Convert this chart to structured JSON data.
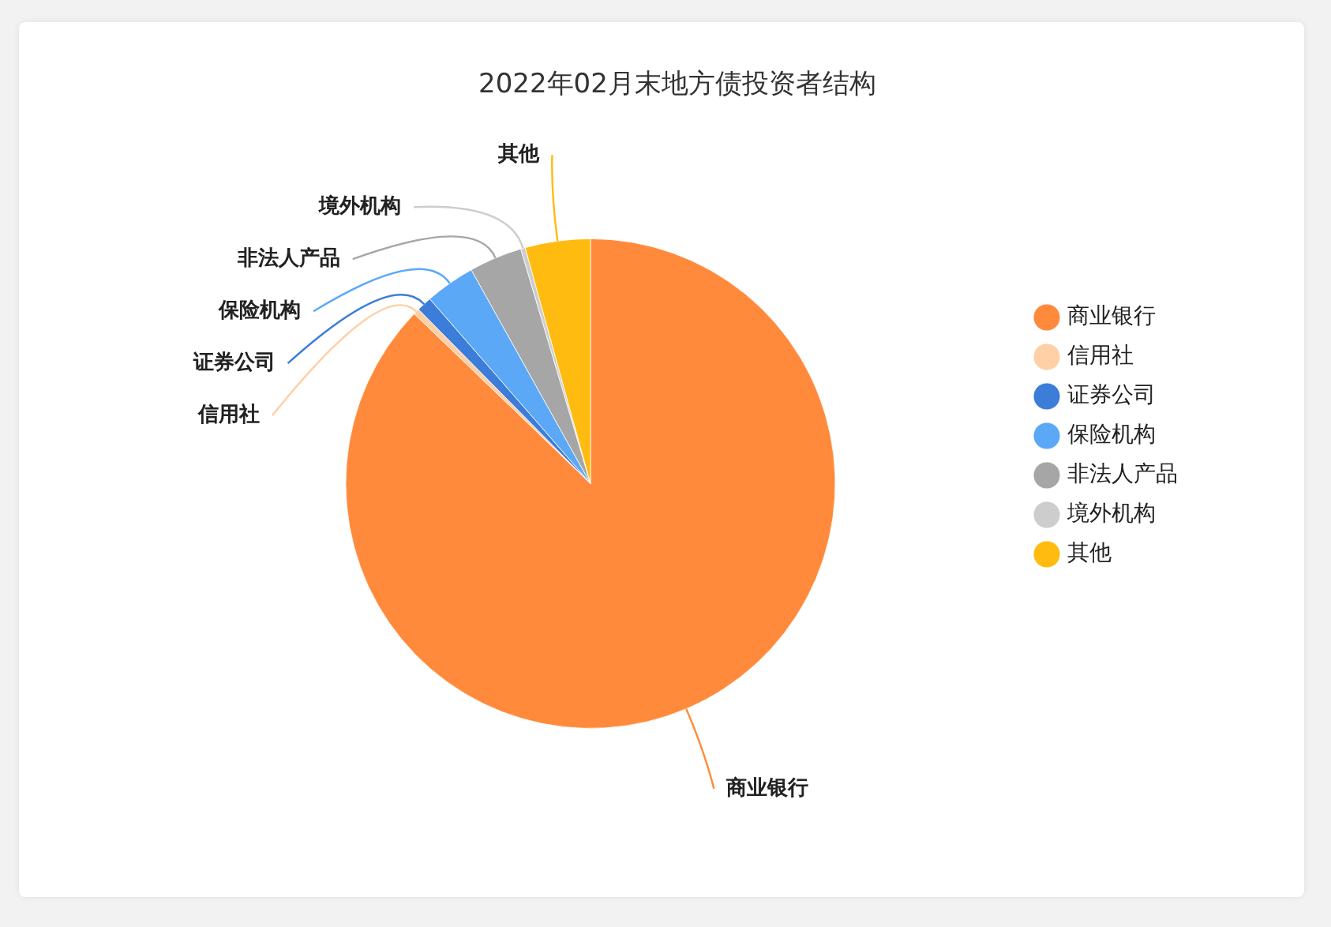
{
  "chart_data": {
    "type": "pie",
    "title": "2022年02月末地方债投资者结构",
    "categories": [
      "商业银行",
      "信用社",
      "证券公司",
      "保险机构",
      "非法人产品",
      "境外机构",
      "其他"
    ],
    "values": [
      87.2,
      0.4,
      1.0,
      3.3,
      3.5,
      0.3,
      4.3
    ],
    "colors": [
      "#ff8a3b",
      "#ffcfa6",
      "#3b7dd8",
      "#5ba8f7",
      "#a6a6a6",
      "#cdcdcd",
      "#ffbb0f"
    ],
    "legend": "right"
  }
}
